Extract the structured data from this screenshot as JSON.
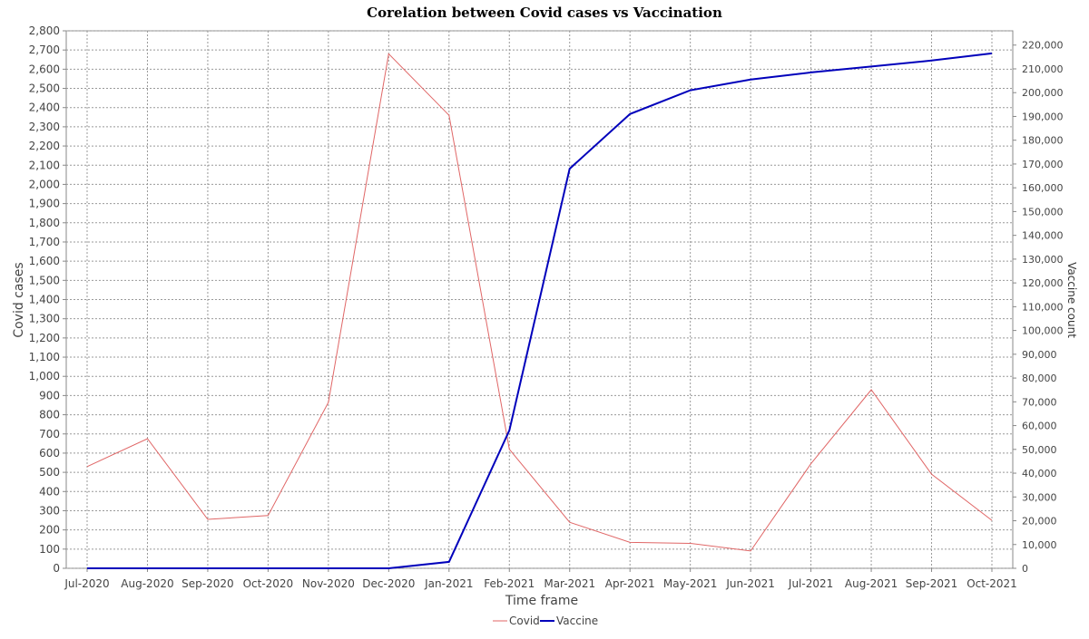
{
  "chart_data": {
    "type": "line",
    "title": "Corelation between Covid cases vs Vaccination",
    "xlabel": "Time frame",
    "ylabel_left": "Covid cases",
    "ylabel_right": "Vaccine count",
    "categories": [
      "Jul-2020",
      "Aug-2020",
      "Sep-2020",
      "Oct-2020",
      "Nov-2020",
      "Dec-2020",
      "Jan-2021",
      "Feb-2021",
      "Mar-2021",
      "Apr-2021",
      "May-2021",
      "Jun-2021",
      "Jul-2021",
      "Aug-2021",
      "Sep-2021",
      "Oct-2021"
    ],
    "y_left": {
      "min": 0,
      "max": 2800,
      "step": 100,
      "tick_labels": [
        "0",
        "100",
        "200",
        "300",
        "400",
        "500",
        "600",
        "700",
        "800",
        "900",
        "1,000",
        "1,100",
        "1,200",
        "1,300",
        "1,400",
        "1,500",
        "1,600",
        "1,700",
        "1,800",
        "1,900",
        "2,000",
        "2,100",
        "2,200",
        "2,300",
        "2,400",
        "2,500",
        "2,600",
        "2,700",
        "2,800"
      ]
    },
    "y_right": {
      "min": 0,
      "max": 226000,
      "step": 10000,
      "tick_labels": [
        "0",
        "10,000",
        "20,000",
        "30,000",
        "40,000",
        "50,000",
        "60,000",
        "70,000",
        "80,000",
        "90,000",
        "100,000",
        "110,000",
        "120,000",
        "130,000",
        "140,000",
        "150,000",
        "160,000",
        "170,000",
        "180,000",
        "190,000",
        "200,000",
        "210,000",
        "220,000"
      ]
    },
    "grid": true,
    "legend_position": "bottom-center",
    "series": [
      {
        "name": "Covid",
        "axis": "left",
        "color": "#e06666",
        "values": [
          530,
          675,
          255,
          275,
          865,
          2680,
          2360,
          620,
          240,
          135,
          130,
          90,
          545,
          930,
          490,
          250
        ]
      },
      {
        "name": "Vaccine",
        "axis": "right",
        "color": "#0000bb",
        "values": [
          0,
          0,
          0,
          0,
          0,
          0,
          2700,
          58000,
          168000,
          191000,
          201000,
          205500,
          208500,
          211000,
          213500,
          216500
        ]
      }
    ]
  }
}
